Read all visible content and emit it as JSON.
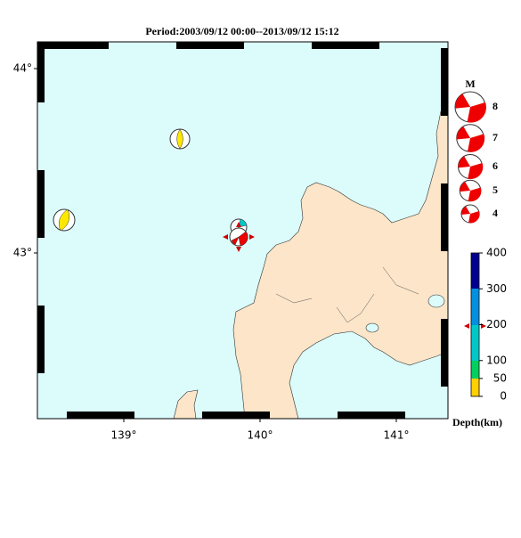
{
  "title": "Period:2003/09/12 00:00--2013/09/12 15:12",
  "lat_labels": [
    {
      "value": 44,
      "label": "44°"
    },
    {
      "value": 43,
      "label": "43°"
    }
  ],
  "lon_labels": [
    {
      "value": 139,
      "label": "139°"
    },
    {
      "value": 140,
      "label": "140°"
    },
    {
      "value": 141,
      "label": "141°"
    }
  ],
  "magnitude_legend": {
    "title": "M",
    "values": [
      8,
      7,
      6,
      5,
      4
    ]
  },
  "depth_scale": {
    "label": "Depth(km)",
    "ticks": [
      400,
      300,
      200,
      100,
      50,
      0
    ]
  }
}
